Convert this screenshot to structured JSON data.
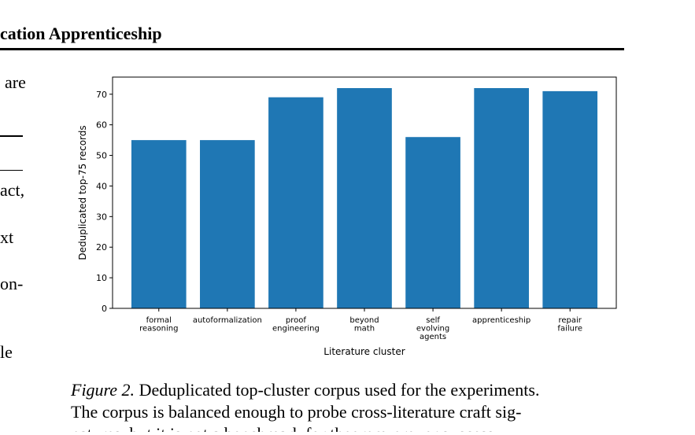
{
  "header": {
    "running_title": "cation Apprenticeship"
  },
  "left_column_fragments": [
    "are",
    "act,",
    "xt",
    "on-",
    "le"
  ],
  "chart_data": {
    "type": "bar",
    "categories": [
      [
        "formal",
        "reasoning"
      ],
      [
        "autoformalization"
      ],
      [
        "proof",
        "engineering"
      ],
      [
        "beyond",
        "math"
      ],
      [
        "self",
        "evolving",
        "agents"
      ],
      [
        "apprenticeship"
      ],
      [
        "repair",
        "failure"
      ]
    ],
    "values": [
      55,
      55,
      69,
      72,
      56,
      72,
      71
    ],
    "xlabel": "Literature cluster",
    "ylabel": "Deduplicated top-75 records",
    "ylim": [
      0,
      75.6
    ],
    "yticks": [
      0,
      10,
      20,
      30,
      40,
      50,
      60,
      70
    ],
    "bar_color": "#1f77b4",
    "grid": false
  },
  "caption": {
    "label": "Figure 2.",
    "line1": "Deduplicated top-cluster corpus used for the experiments.",
    "line2": "The corpus is balanced enough to probe cross-literature craft sig-",
    "line3": "natures, but it is not a benchmark for theorem-prover success."
  }
}
